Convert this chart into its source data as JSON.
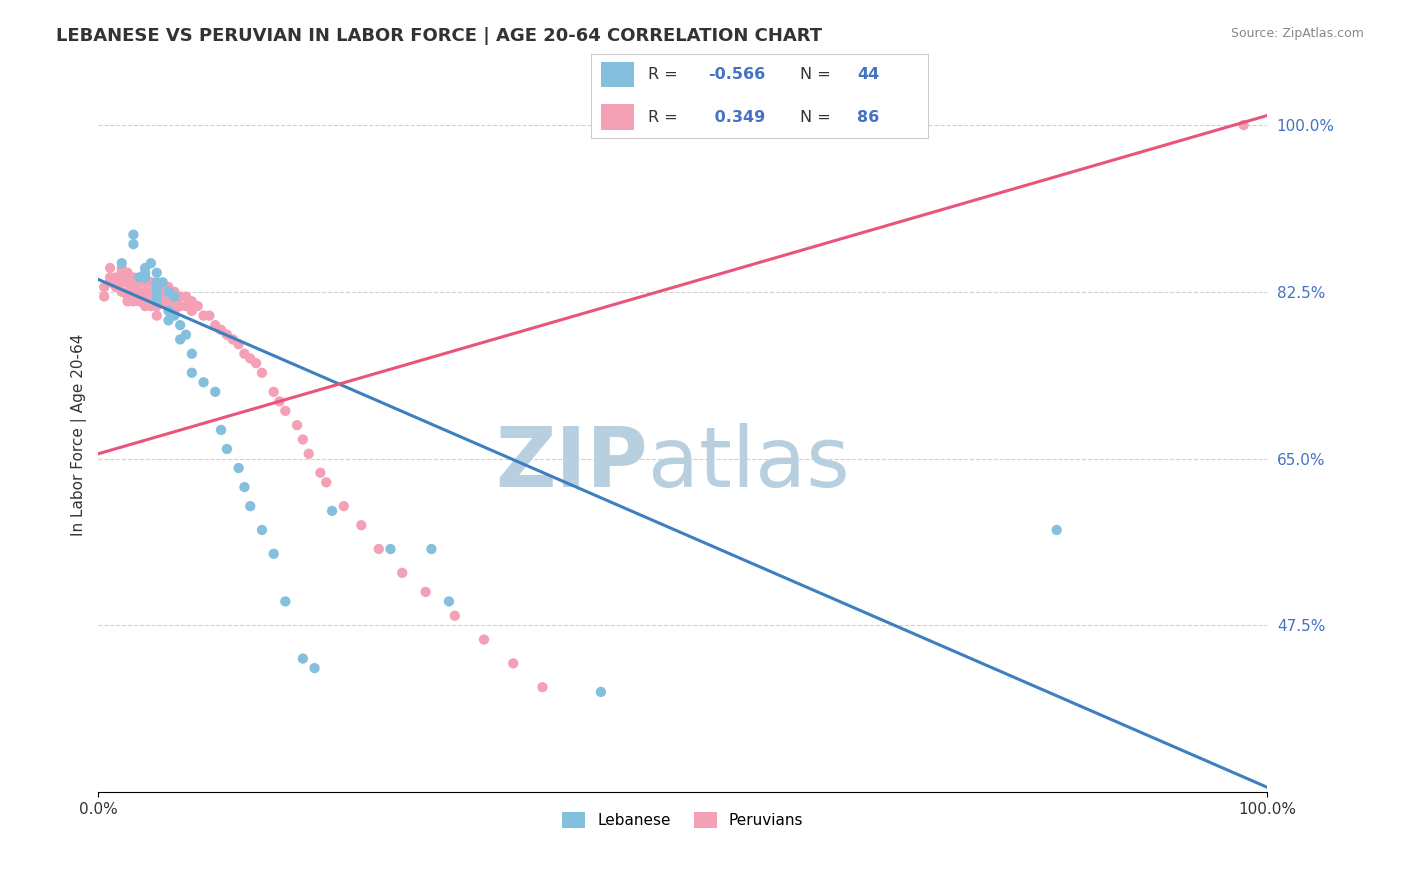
{
  "title": "LEBANESE VS PERUVIAN IN LABOR FORCE | AGE 20-64 CORRELATION CHART",
  "source": "Source: ZipAtlas.com",
  "ylabel": "In Labor Force | Age 20-64",
  "xlim": [
    0.0,
    1.0
  ],
  "ylim": [
    0.3,
    1.05
  ],
  "legend_r_lebanese": "-0.566",
  "legend_n_lebanese": "44",
  "legend_r_peruvian": "0.349",
  "legend_n_peruvian": "86",
  "lebanese_color": "#85bfde",
  "peruvian_color": "#f4a0b5",
  "lebanese_line_color": "#3d7fbf",
  "peruvian_line_color": "#e8547a",
  "watermark_zip": "ZIP",
  "watermark_atlas": "atlas",
  "watermark_color_zip": "#b8cfe0",
  "watermark_color_atlas": "#b8cfe0",
  "background_color": "#ffffff",
  "grid_color": "#cccccc",
  "ytick_color": "#4472c4",
  "title_color": "#333333",
  "source_color": "#888888",
  "lebanese_x": [
    0.02,
    0.03,
    0.03,
    0.035,
    0.04,
    0.04,
    0.04,
    0.045,
    0.05,
    0.05,
    0.05,
    0.05,
    0.05,
    0.05,
    0.055,
    0.06,
    0.06,
    0.06,
    0.06,
    0.065,
    0.065,
    0.07,
    0.07,
    0.075,
    0.08,
    0.08,
    0.09,
    0.1,
    0.105,
    0.11,
    0.12,
    0.125,
    0.13,
    0.14,
    0.15,
    0.16,
    0.175,
    0.185,
    0.2,
    0.25,
    0.285,
    0.3,
    0.43,
    0.82
  ],
  "lebanese_y": [
    0.855,
    0.885,
    0.875,
    0.84,
    0.845,
    0.85,
    0.84,
    0.855,
    0.845,
    0.835,
    0.83,
    0.825,
    0.815,
    0.82,
    0.835,
    0.825,
    0.825,
    0.805,
    0.795,
    0.82,
    0.8,
    0.79,
    0.775,
    0.78,
    0.76,
    0.74,
    0.73,
    0.72,
    0.68,
    0.66,
    0.64,
    0.62,
    0.6,
    0.575,
    0.55,
    0.5,
    0.44,
    0.43,
    0.595,
    0.555,
    0.555,
    0.5,
    0.405,
    0.575
  ],
  "peruvian_x": [
    0.005,
    0.005,
    0.01,
    0.01,
    0.01,
    0.015,
    0.015,
    0.02,
    0.02,
    0.02,
    0.02,
    0.02,
    0.025,
    0.025,
    0.025,
    0.025,
    0.025,
    0.025,
    0.03,
    0.03,
    0.03,
    0.03,
    0.03,
    0.035,
    0.035,
    0.035,
    0.035,
    0.04,
    0.04,
    0.04,
    0.04,
    0.04,
    0.045,
    0.045,
    0.045,
    0.045,
    0.05,
    0.05,
    0.05,
    0.05,
    0.05,
    0.055,
    0.055,
    0.055,
    0.06,
    0.06,
    0.06,
    0.065,
    0.065,
    0.065,
    0.07,
    0.07,
    0.075,
    0.075,
    0.08,
    0.08,
    0.085,
    0.09,
    0.095,
    0.1,
    0.105,
    0.11,
    0.115,
    0.12,
    0.125,
    0.13,
    0.135,
    0.14,
    0.15,
    0.155,
    0.16,
    0.17,
    0.175,
    0.18,
    0.19,
    0.195,
    0.21,
    0.225,
    0.24,
    0.26,
    0.28,
    0.305,
    0.33,
    0.355,
    0.38,
    0.98
  ],
  "peruvian_y": [
    0.83,
    0.82,
    0.84,
    0.85,
    0.835,
    0.84,
    0.83,
    0.85,
    0.845,
    0.84,
    0.835,
    0.825,
    0.845,
    0.84,
    0.835,
    0.825,
    0.82,
    0.815,
    0.84,
    0.835,
    0.83,
    0.82,
    0.815,
    0.84,
    0.835,
    0.825,
    0.815,
    0.84,
    0.835,
    0.825,
    0.82,
    0.81,
    0.835,
    0.825,
    0.82,
    0.81,
    0.83,
    0.82,
    0.815,
    0.81,
    0.8,
    0.83,
    0.82,
    0.815,
    0.83,
    0.82,
    0.81,
    0.825,
    0.815,
    0.805,
    0.82,
    0.81,
    0.82,
    0.81,
    0.815,
    0.805,
    0.81,
    0.8,
    0.8,
    0.79,
    0.785,
    0.78,
    0.775,
    0.77,
    0.76,
    0.755,
    0.75,
    0.74,
    0.72,
    0.71,
    0.7,
    0.685,
    0.67,
    0.655,
    0.635,
    0.625,
    0.6,
    0.58,
    0.555,
    0.53,
    0.51,
    0.485,
    0.46,
    0.435,
    0.41,
    1.0
  ],
  "leb_trend_x0": 0.0,
  "leb_trend_y0": 0.838,
  "leb_trend_x1": 1.0,
  "leb_trend_y1": 0.305,
  "per_trend_x0": 0.0,
  "per_trend_y0": 0.655,
  "per_trend_x1": 1.0,
  "per_trend_y1": 1.01
}
